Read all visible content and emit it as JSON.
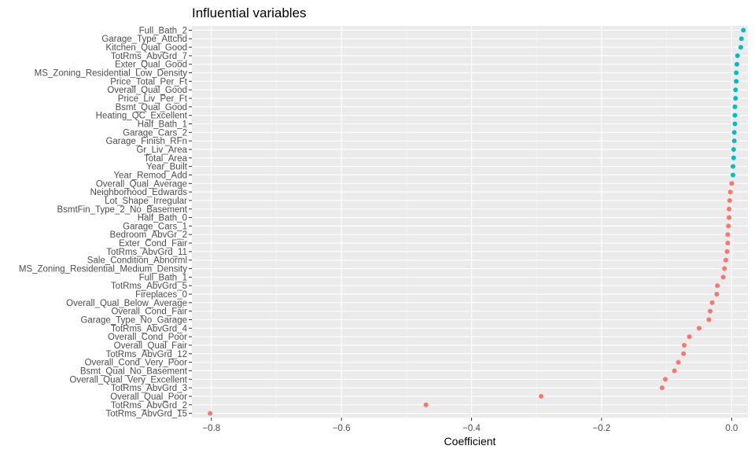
{
  "chart_data": {
    "type": "scatter",
    "title": "Influential variables",
    "xlabel": "Coefficient",
    "ylabel": "",
    "xlim": [
      -0.83,
      0.025
    ],
    "x_ticks": [
      -0.8,
      -0.6,
      -0.4,
      -0.2,
      0.0
    ],
    "x_tick_labels": [
      "−0.8",
      "−0.6",
      "−0.4",
      "−0.2",
      "0.0"
    ],
    "grid": true,
    "legend": "none",
    "colors": {
      "positive": "#00BFC4",
      "negative": "#F8766D",
      "panel": "#EBEBEB"
    },
    "points": [
      {
        "label": "Full_Bath_2",
        "value": 0.018
      },
      {
        "label": "Garage_Type_Attchd",
        "value": 0.015
      },
      {
        "label": "Kitchen_Qual_Good",
        "value": 0.014
      },
      {
        "label": "TotRms_AbvGrd_7",
        "value": 0.009
      },
      {
        "label": "Exter_Qual_Good",
        "value": 0.008
      },
      {
        "label": "MS_Zoning_Residential_Low_Density",
        "value": 0.007
      },
      {
        "label": "Price_Total_Per_Ft",
        "value": 0.007
      },
      {
        "label": "Overall_Qual_Good",
        "value": 0.006
      },
      {
        "label": "Price_Liv_Per_Ft",
        "value": 0.006
      },
      {
        "label": "Bsmt_Qual_Good",
        "value": 0.005
      },
      {
        "label": "Heating_QC_Excellent",
        "value": 0.005
      },
      {
        "label": "Half_Bath_1",
        "value": 0.005
      },
      {
        "label": "Garage_Cars_2",
        "value": 0.004
      },
      {
        "label": "Garage_Finish_RFn",
        "value": 0.004
      },
      {
        "label": "Gr_Liv_Area",
        "value": 0.003
      },
      {
        "label": "Total_Area",
        "value": 0.003
      },
      {
        "label": "Year_Built",
        "value": 0.002
      },
      {
        "label": "Year_Remod_Add",
        "value": 0.002
      },
      {
        "label": "Overall_Qual_Average",
        "value": 0.0
      },
      {
        "label": "Neighborhood_Edwards",
        "value": -0.002
      },
      {
        "label": "Lot_Shape_Irregular",
        "value": -0.003
      },
      {
        "label": "BsmtFin_Type_2_No_Basement",
        "value": -0.004
      },
      {
        "label": "Half_Bath_0",
        "value": -0.004
      },
      {
        "label": "Garage_Cars_1",
        "value": -0.005
      },
      {
        "label": "Bedroom_AbvGr_2",
        "value": -0.006
      },
      {
        "label": "Exter_Cond_Fair",
        "value": -0.006
      },
      {
        "label": "TotRms_AbvGrd_11",
        "value": -0.007
      },
      {
        "label": "Sale_Condition_Abnorml",
        "value": -0.009
      },
      {
        "label": "MS_Zoning_Residential_Medium_Density",
        "value": -0.011
      },
      {
        "label": "Full_Bath_1",
        "value": -0.013
      },
      {
        "label": "TotRms_AbvGrd_5",
        "value": -0.022
      },
      {
        "label": "Fireplaces_0",
        "value": -0.023
      },
      {
        "label": "Overall_Qual_Below_Average",
        "value": -0.03
      },
      {
        "label": "Overall_Cond_Fair",
        "value": -0.033
      },
      {
        "label": "Garage_Type_No_Garage",
        "value": -0.035
      },
      {
        "label": "TotRms_AbvGrd_4",
        "value": -0.05
      },
      {
        "label": "Overall_Cond_Poor",
        "value": -0.065
      },
      {
        "label": "Overall_Qual_Fair",
        "value": -0.073
      },
      {
        "label": "TotRms_AbvGrd_12",
        "value": -0.074
      },
      {
        "label": "Overall_Cond_Very_Poor",
        "value": -0.082
      },
      {
        "label": "Bsmt_Qual_No_Basement",
        "value": -0.088
      },
      {
        "label": "Overall_Qual_Very_Excellent",
        "value": -0.102
      },
      {
        "label": "TotRms_AbvGrd_3",
        "value": -0.107
      },
      {
        "label": "Overall_Qual_Poor",
        "value": -0.293
      },
      {
        "label": "TotRms_AbvGrd_2",
        "value": -0.47
      },
      {
        "label": "TotRms_AbvGrd_15",
        "value": -0.802
      }
    ]
  }
}
